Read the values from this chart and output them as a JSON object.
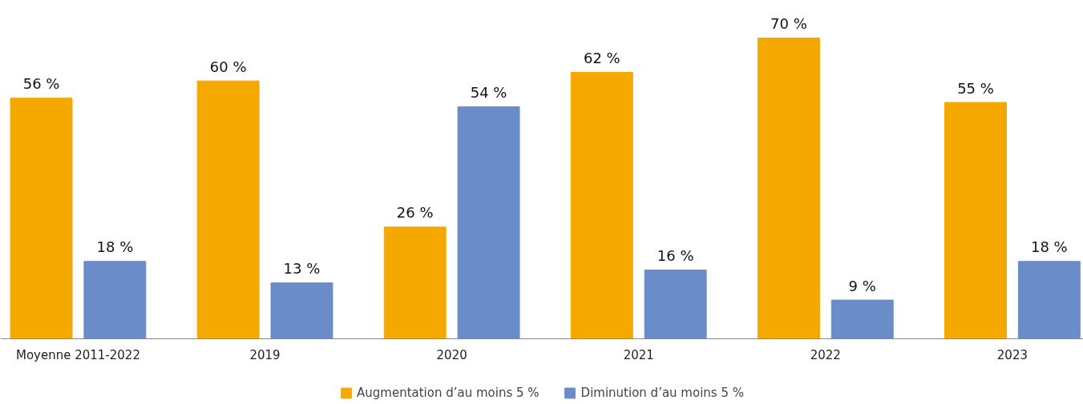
{
  "chart_data": {
    "type": "bar",
    "categories": [
      "Moyenne 2011-2022",
      "2019",
      "2020",
      "2021",
      "2022",
      "2023"
    ],
    "series": [
      {
        "name": "Augmentation d’au moins 5 %",
        "color": "#f5a800",
        "values": [
          56,
          60,
          26,
          62,
          70,
          55
        ],
        "value_labels": [
          "56 %",
          "60 %",
          "26 %",
          "62 %",
          "70 %",
          "55 %"
        ]
      },
      {
        "name": "Diminution d’au moins 5 %",
        "color": "#6a8cc9",
        "values": [
          18,
          13,
          54,
          16,
          9,
          18
        ],
        "value_labels": [
          "18 %",
          "13 %",
          "54 %",
          "16 %",
          "9 %",
          "18 %"
        ]
      }
    ],
    "legend": "bottom"
  }
}
